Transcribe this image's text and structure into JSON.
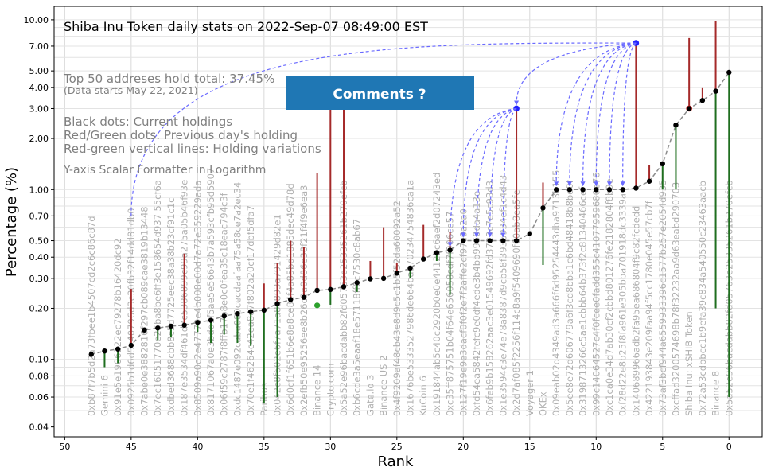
{
  "chart_data": {
    "type": "scatter",
    "title": "Shiba Inu Token daily stats on 2022-Sep-07 08:49:00  EST",
    "xlabel": "Rank",
    "ylabel": "Percentage (%)",
    "xlim": [
      50.8,
      -2.5
    ],
    "ylim": [
      0.035,
      12
    ],
    "y_scale": "log",
    "grid": true,
    "x_ticks": [
      50,
      45,
      40,
      35,
      30,
      25,
      20,
      15,
      10,
      5,
      0
    ],
    "x_tick_labels": [
      "50",
      "45",
      "40",
      "35",
      "30",
      "25",
      "20",
      "15",
      "10",
      "5",
      "0"
    ],
    "y_ticks": [
      0.04,
      0.06,
      0.08,
      0.1,
      0.2,
      0.3,
      0.4,
      0.5,
      0.7,
      1.0,
      2.0,
      3.0,
      4.0,
      5.0,
      7.0,
      10.0
    ],
    "y_tick_labels": [
      "0.04",
      "0.06",
      "0.08",
      "0.10",
      "0.20",
      "0.30",
      "0.40",
      "0.50",
      "0.70",
      "1.00",
      "2.00",
      "3.00",
      "4.00",
      "5.00",
      "7.00",
      "10.00"
    ],
    "annotations": {
      "top50": "Top 50 addreses hold total: 37.45%",
      "data_start": "(Data starts May 22, 2021)",
      "legend_black": "Black dots: Current holdings",
      "legend_redgreen": "Red/Green dots: Previous day's holding",
      "legend_lines": "Red-green vertical lines: Holding variations",
      "formatter": "Y-axis Scalar Formatter in Logarithm",
      "comments_box": "Comments ?"
    },
    "colors": {
      "current": "#000000",
      "increase_line": "#a52a2a",
      "decrease_line": "#1f6e1f",
      "previous_red": "#d62728",
      "previous_green": "#2ca02c",
      "trend": "#8c8c8c",
      "comment_arrows": "#6a6aff",
      "comments_box_fill": "#1f77b4",
      "address_labels": "#b0b0b0"
    },
    "points": [
      {
        "rank": 48,
        "current": 0.107,
        "low": 0.107,
        "high": 0.107,
        "label": "0xb87f7b5d2a73fbee1b4507cd2c6c86c87d"
      },
      {
        "rank": 47,
        "current": 0.112,
        "low": 0.09,
        "high": 0.112,
        "label": "Gemini 6"
      },
      {
        "rank": 46,
        "current": 0.115,
        "low": 0.095,
        "high": 0.115,
        "label": "0x91e5e1906222ec79278b16420dc92"
      },
      {
        "rank": 45,
        "current": 0.121,
        "low": 0.121,
        "high": 0.26,
        "label": "0x0925b1d6d5c40796d3c30fb32f14dd81db0"
      },
      {
        "rank": 44,
        "current": 0.149,
        "low": 0.149,
        "high": 0.151,
        "label": "0x7abe0e3882816f297cb089cae3819b13448"
      },
      {
        "rank": 43,
        "current": 0.153,
        "low": 0.13,
        "high": 0.153,
        "label": "0x7ec16051770e25ba8be6ff3e158654d937 55cf6a"
      },
      {
        "rank": 42,
        "current": 0.157,
        "low": 0.135,
        "high": 0.157,
        "label": "0xdbed3688cbb8c5d7725eec38a38b23cf91c1c"
      },
      {
        "rank": 41,
        "current": 0.159,
        "low": 0.159,
        "high": 0.42,
        "label": "0x187e3534df461d7c5386899c99a275a05b46f93e"
      },
      {
        "rank": 40,
        "current": 0.165,
        "low": 0.145,
        "high": 0.165,
        "label": "0x8509a90c2e47779e4b008e00d7a72e359229ada"
      },
      {
        "rank": 39,
        "current": 0.17,
        "low": 0.125,
        "high": 0.17,
        "label": "0x8171067a0e3bdd1f5ae5e56643b7a593cfb95d5907"
      },
      {
        "rank": 38,
        "current": 0.18,
        "low": 0.14,
        "high": 0.18,
        "label": "0x06f59c2787f8ffb17b8e0c0fea35c18eac794c3f"
      },
      {
        "rank": 37,
        "current": 0.186,
        "low": 0.125,
        "high": 0.186,
        "label": "0xdc1487e092caba080cecdaafaa75a58ce7a2ec34"
      },
      {
        "rank": 36,
        "current": 0.191,
        "low": 0.12,
        "high": 0.191,
        "label": "0x70e1f46264c42ea8e7f802a20cf17dbf5dfa7"
      },
      {
        "rank": 35,
        "current": 0.195,
        "low": 0.055,
        "high": 0.28,
        "label": "Paribus"
      },
      {
        "rank": 34,
        "current": 0.213,
        "low": 0.06,
        "high": 0.37,
        "label": "0x042c8f602e6f7a71a8a893a791429d82e1"
      },
      {
        "rank": 33,
        "current": 0.225,
        "low": 0.225,
        "high": 0.5,
        "label": "0x6d0cf1f651b6e8a8ce84f4a85bd1885dec49d78d"
      },
      {
        "rank": 32,
        "current": 0.232,
        "low": 0.232,
        "high": 0.46,
        "label": "0x2efb50e95256ee8b26c9a0d86e38f21f4f9e6ea3"
      },
      {
        "rank": 31,
        "current": 0.255,
        "low": 0.255,
        "high": 1.25,
        "label": "Binance 14"
      },
      {
        "rank": 30,
        "current": 0.258,
        "low": 0.21,
        "high": 3.9,
        "label": "Crypto.com"
      },
      {
        "rank": 29,
        "current": 0.268,
        "low": 0.268,
        "high": 4.6,
        "label": "0x5a52e96bacdabb82fd05763e25335261b270efcb"
      },
      {
        "rank": 28,
        "current": 0.283,
        "low": 0.25,
        "high": 0.283,
        "label": "0xb6cde3a5eaaf18e57118ff8c7530c8ab67"
      },
      {
        "rank": 27,
        "current": 0.298,
        "low": 0.298,
        "high": 0.38,
        "label": "Gate.io 3"
      },
      {
        "rank": 26,
        "current": 0.3,
        "low": 0.3,
        "high": 0.6,
        "label": "Binance US 2"
      },
      {
        "rank": 25,
        "current": 0.322,
        "low": 0.322,
        "high": 0.37,
        "label": "0x4f9209af48cb43e8d9c5c1b5f52da60092a52"
      },
      {
        "rank": 24,
        "current": 0.345,
        "low": 0.3,
        "high": 0.345,
        "label": "0x1676be5333527986de664ba570234754836ca1a"
      },
      {
        "rank": 23,
        "current": 0.39,
        "low": 0.39,
        "high": 0.62,
        "label": "KuCoin 6"
      },
      {
        "rank": 22,
        "current": 0.425,
        "low": 0.38,
        "high": 0.425,
        "label": "0x191844ab5c40c2920b0e0e44122c6aef2d07243ed"
      },
      {
        "rank": 21,
        "current": 0.44,
        "low": 0.24,
        "high": 0.56,
        "label": "0xc35ff875751b04f64e656058cdf7f906ce57"
      },
      {
        "rank": 20,
        "current": 0.5,
        "low": 0.5,
        "high": 0.5,
        "label": "0x127f19e9e3dacf0f0f2e7f2affe2cf97c0a2a0"
      },
      {
        "rank": 19,
        "current": 0.5,
        "low": 0.5,
        "high": 0.5,
        "label": "0xfd54ea5842fefc9e0df4ede3b4bb9950da4a13e"
      },
      {
        "rank": 18,
        "current": 0.5,
        "low": 0.5,
        "high": 0.5,
        "label": "0x6feb9b158262aac3e01549692fd3723c7e5c93d3"
      },
      {
        "rank": 17,
        "current": 0.5,
        "low": 0.5,
        "high": 0.5,
        "label": "0x1e3594c3e74e78a8387d9cb58f3936934ef1c4d43"
      },
      {
        "rank": 16,
        "current": 0.5,
        "low": 0.5,
        "high": 3.0,
        "label": "0x2d7af085f2256f114c8a9f5409690f00ab8ea5fe"
      },
      {
        "rank": 15,
        "current": 0.55,
        "low": 0.55,
        "high": 0.55,
        "label": "Voyager 1"
      },
      {
        "rank": 14,
        "current": 0.78,
        "low": 0.36,
        "high": 1.1,
        "label": "OKEx"
      },
      {
        "rank": 13,
        "current": 1.0,
        "low": 1.0,
        "high": 1.0,
        "label": "0x09eab02d4349ad3a666f6d95254443dba9713b155"
      },
      {
        "rank": 12,
        "current": 1.0,
        "low": 1.0,
        "high": 1.0,
        "label": "0x5ee8e72d606779a6f3cd8bba1c6bd48418b8bd0f"
      },
      {
        "rank": 11,
        "current": 1.0,
        "low": 1.0,
        "high": 1.0,
        "label": "0x3198713266c5ae1cbbb64b373f2c81340466cef"
      },
      {
        "rank": 10,
        "current": 1.0,
        "low": 1.0,
        "high": 1.0,
        "label": "0x99c14064527c4f0fcee0fadd355c41077959680e76"
      },
      {
        "rank": 9,
        "current": 1.0,
        "low": 1.0,
        "high": 1.0,
        "label": "0xc1ca0e34d7ab30cf2cbbd801276fe2182804f8b9e"
      },
      {
        "rank": 8,
        "current": 1.0,
        "low": 1.0,
        "high": 1.0,
        "label": "0xf28d22e8b25f8fa961e305bba701918dc3339a"
      },
      {
        "rank": 7,
        "current": 1.02,
        "low": 1.02,
        "high": 7.3,
        "label": "0x140689966adb2fa95ea686804f9c82fcdedd"
      },
      {
        "rank": 6,
        "current": 1.12,
        "low": 1.12,
        "high": 1.4,
        "label": "0x422193843e209faa94f5cc1780e045e57cb7f"
      },
      {
        "rank": 5,
        "current": 1.42,
        "low": 1.0,
        "high": 1.42,
        "label": "0x73af3bcf944a6559933396c1577b257e2054d935"
      },
      {
        "rank": 4,
        "current": 2.4,
        "low": 1.0,
        "high": 2.4,
        "label": "0xcffad3200574698b78f32232aa9d63eabd290703"
      },
      {
        "rank": 3,
        "current": 3.0,
        "low": 3.0,
        "high": 7.8,
        "prev": "red",
        "label": "Shiba Inu: xSHIB Token"
      },
      {
        "rank": 2,
        "current": 3.35,
        "low": 3.35,
        "high": 4.0,
        "label": "0x72a53cdbbcc1b9efa39c834a540550c23463aacb"
      },
      {
        "rank": 1,
        "current": 3.8,
        "low": 0.2,
        "high": 9.8,
        "label": "Binance 8"
      },
      {
        "rank": 0,
        "current": 4.9,
        "low": 0.06,
        "high": 4.9,
        "label": "0x5a52e96bacdabb82fd05763e25335261b270efcb"
      }
    ],
    "previous_green": [
      {
        "rank": 31,
        "value": 0.208
      }
    ],
    "highlight_blue": [
      {
        "rank": 16,
        "value": 3.0
      },
      {
        "rank": 7,
        "value": 7.3
      }
    ],
    "comment_arrows": {
      "from_rank7_to": [
        13,
        12,
        11,
        10,
        9,
        8,
        7,
        16,
        45
      ],
      "from_rank16_to": [
        21,
        20,
        19,
        18,
        17
      ]
    }
  }
}
